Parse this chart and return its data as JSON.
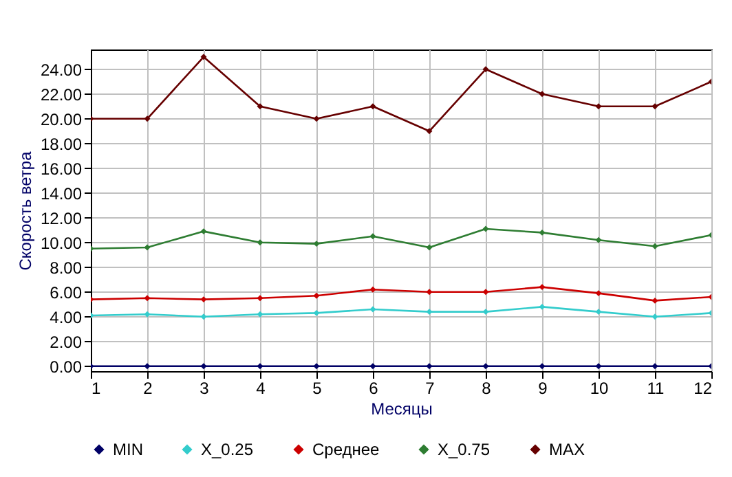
{
  "chart_data": {
    "type": "line",
    "xlabel": "Месяцы",
    "ylabel": "Скорость ветра",
    "x": [
      1,
      2,
      3,
      4,
      5,
      6,
      7,
      8,
      9,
      10,
      11,
      12
    ],
    "xlim": [
      1,
      12
    ],
    "xticks": [
      1,
      2,
      3,
      4,
      5,
      6,
      7,
      8,
      9,
      10,
      11,
      12
    ],
    "ylim": [
      -0.4,
      25.6
    ],
    "yticks": [
      {
        "value": 0,
        "label": "0.00"
      },
      {
        "value": 2,
        "label": "2.00"
      },
      {
        "value": 4,
        "label": "4.00"
      },
      {
        "value": 6,
        "label": "6.00"
      },
      {
        "value": 8,
        "label": "8.00"
      },
      {
        "value": 10,
        "label": "10.00"
      },
      {
        "value": 12,
        "label": "12.00"
      },
      {
        "value": 14,
        "label": "14.00"
      },
      {
        "value": 16,
        "label": "16.00"
      },
      {
        "value": 18,
        "label": "18.00"
      },
      {
        "value": 20,
        "label": "20.00"
      },
      {
        "value": 22,
        "label": "22.00"
      },
      {
        "value": 24,
        "label": "24.00"
      }
    ],
    "grid": true,
    "legend": "bottom",
    "marker": "diamond",
    "series": [
      {
        "name": "MIN",
        "color": "#000066",
        "values": [
          0,
          0,
          0,
          0,
          0,
          0,
          0,
          0,
          0,
          0,
          0,
          0
        ]
      },
      {
        "name": "X_0.25",
        "color": "#33cccc",
        "values": [
          4.1,
          4.2,
          4.0,
          4.2,
          4.3,
          4.6,
          4.4,
          4.4,
          4.8,
          4.4,
          4.0,
          4.3
        ]
      },
      {
        "name": "Среднее",
        "color": "#cc0000",
        "values": [
          5.4,
          5.5,
          5.4,
          5.5,
          5.7,
          6.2,
          6.0,
          6.0,
          6.4,
          5.9,
          5.3,
          5.6
        ]
      },
      {
        "name": "X_0.75",
        "color": "#2e7d32",
        "values": [
          9.5,
          9.6,
          10.9,
          10.0,
          9.9,
          10.5,
          9.6,
          11.1,
          10.8,
          10.2,
          9.7,
          10.6
        ]
      },
      {
        "name": "MAX",
        "color": "#660000",
        "values": [
          20,
          20,
          25,
          21,
          20,
          21,
          19,
          24,
          22,
          21,
          21,
          23
        ]
      }
    ]
  }
}
